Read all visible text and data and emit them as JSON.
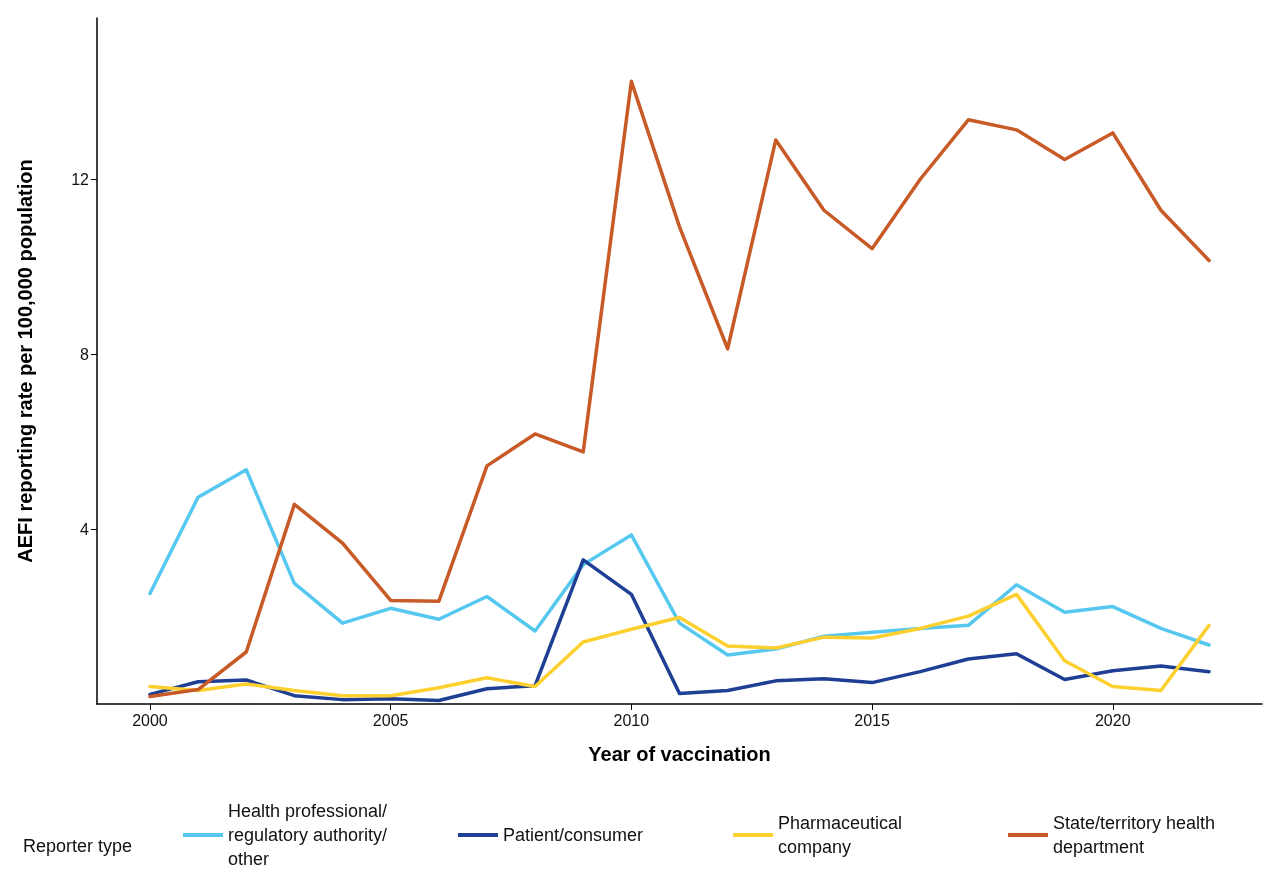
{
  "chart_data": {
    "type": "line",
    "xlabel": "Year of vaccination",
    "ylabel": "AEFI reporting rate per 100,000 population",
    "legend_title": "Reporter type",
    "legend": "bottom",
    "grid": false,
    "marker": "none",
    "line_style": "solid",
    "x": [
      2000,
      2001,
      2002,
      2003,
      2004,
      2005,
      2006,
      2007,
      2008,
      2009,
      2010,
      2011,
      2012,
      2013,
      2014,
      2015,
      2016,
      2017,
      2018,
      2019,
      2020,
      2021,
      2022
    ],
    "xlim": [
      1998.9,
      2023.1
    ],
    "xticks": [
      2000,
      2005,
      2010,
      2015,
      2020
    ],
    "ylim": [
      0,
      15.7
    ],
    "yticks": [
      4,
      8,
      12
    ],
    "series": [
      {
        "name": "Health professional/ regulatory authority/ other",
        "color": "#56c8f0",
        "values": [
          2.53,
          4.73,
          5.36,
          2.76,
          1.85,
          2.19,
          1.94,
          2.46,
          1.67,
          3.19,
          3.87,
          1.85,
          1.12,
          1.26,
          1.55,
          1.64,
          1.73,
          1.8,
          2.73,
          2.1,
          2.23,
          1.73,
          1.35
        ]
      },
      {
        "name": "Patient/consumer",
        "color": "#1e3f94",
        "values": [
          0.22,
          0.51,
          0.55,
          0.19,
          0.1,
          0.12,
          0.08,
          0.35,
          0.42,
          3.3,
          2.51,
          0.24,
          0.31,
          0.53,
          0.58,
          0.49,
          0.74,
          1.03,
          1.15,
          0.56,
          0.76,
          0.87,
          0.74
        ]
      },
      {
        "name": "Pharmaceutical company",
        "color": "#fdd02f",
        "values": [
          0.4,
          0.31,
          0.46,
          0.31,
          0.19,
          0.19,
          0.37,
          0.6,
          0.4,
          1.42,
          1.71,
          1.98,
          1.33,
          1.28,
          1.53,
          1.51,
          1.73,
          2.01,
          2.51,
          0.99,
          0.4,
          0.31,
          1.8
        ]
      },
      {
        "name": "State/territory health department",
        "color": "#c85a27",
        "values": [
          0.17,
          0.33,
          1.19,
          4.57,
          3.68,
          2.37,
          2.35,
          5.45,
          6.18,
          5.77,
          14.25,
          10.92,
          8.13,
          12.91,
          11.3,
          10.42,
          12.01,
          13.37,
          13.14,
          12.46,
          13.07,
          11.3,
          10.15
        ]
      }
    ]
  }
}
